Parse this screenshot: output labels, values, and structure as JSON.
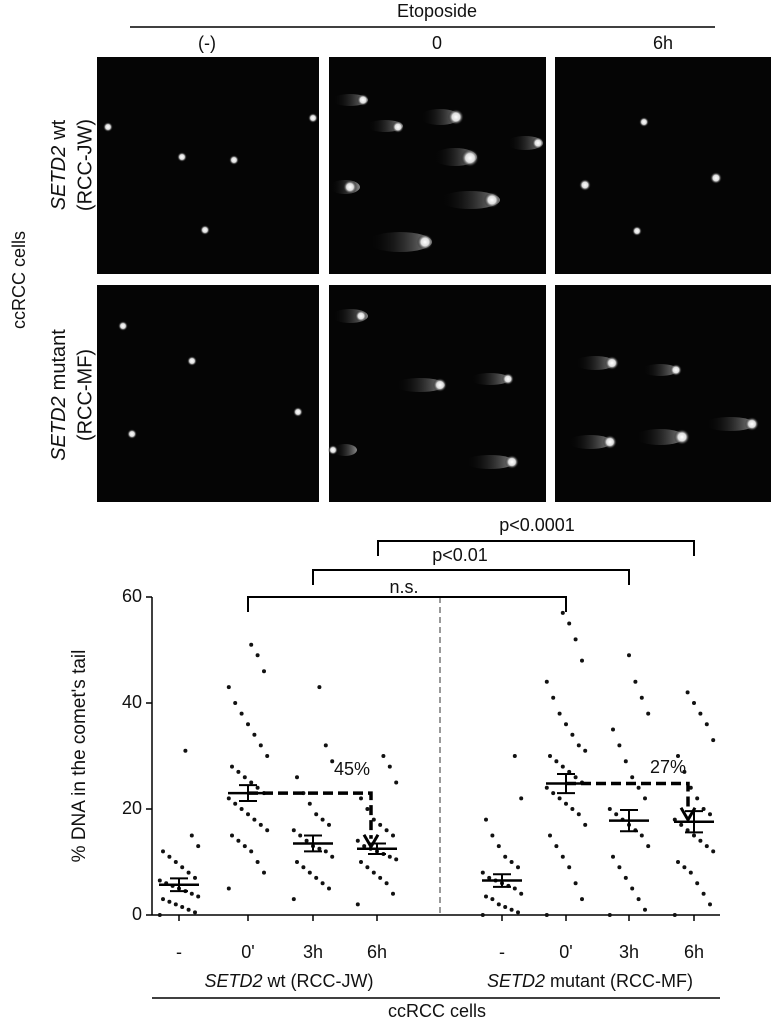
{
  "panels": {
    "title": "Etoposide",
    "columns": [
      "(-)",
      "0",
      "6h"
    ],
    "rows": [
      {
        "gene": "SETD2",
        "suffix": "wt",
        "line": "(RCC-JW)"
      },
      {
        "gene": "SETD2",
        "suffix": "mutant",
        "line": "(RCC-MF)"
      }
    ],
    "row_group": "ccRCC cells"
  },
  "chart_data": {
    "type": "strip",
    "ylabel": "% DNA in the comet's tail",
    "xlabel": "ccRCC cells",
    "categories": [
      "-",
      "0'",
      "3h",
      "6h",
      "-",
      "0'",
      "3h",
      "6h"
    ],
    "group_labels": [
      {
        "gene": "SETD2",
        "label": "wt (RCC-JW)"
      },
      {
        "gene": "SETD2",
        "label": "mutant (RCC-MF)"
      }
    ],
    "ylim": [
      0,
      60
    ],
    "yticks": [
      0,
      20,
      40,
      60
    ],
    "points": [
      [
        0,
        0.5,
        1,
        1.5,
        2,
        2.5,
        3,
        3.5,
        4,
        4.5,
        5,
        5.5,
        6,
        6.5,
        7,
        8,
        9,
        10,
        11,
        12,
        13,
        15,
        31
      ],
      [
        5,
        8,
        10,
        12,
        13,
        14,
        15,
        16,
        17,
        18,
        19,
        20,
        21,
        22,
        23,
        24,
        25,
        26,
        27,
        28,
        30,
        32,
        34,
        36,
        38,
        40,
        43,
        46,
        49,
        51
      ],
      [
        3,
        5,
        6,
        7,
        8,
        9,
        10,
        11,
        12,
        12.5,
        13,
        14,
        15,
        16,
        17,
        18,
        19,
        21,
        23,
        26,
        29,
        32,
        43
      ],
      [
        2,
        4,
        6,
        7,
        8,
        9,
        10,
        10.5,
        11,
        11.5,
        12,
        12.5,
        13,
        14,
        15,
        16,
        17,
        18,
        20,
        22,
        25,
        28,
        30
      ],
      [
        0,
        0.5,
        1,
        1.5,
        2,
        3,
        3.5,
        4,
        5,
        5.5,
        6,
        6.5,
        7,
        8,
        9,
        10,
        11,
        13,
        15,
        18,
        22,
        30
      ],
      [
        0,
        3,
        6,
        9,
        11,
        13,
        15,
        17,
        19,
        20,
        21,
        22,
        23,
        24,
        25,
        26,
        27,
        28,
        29,
        30,
        31,
        32,
        34,
        36,
        38,
        41,
        44,
        48,
        52,
        55,
        57
      ],
      [
        0,
        1,
        3,
        5,
        7,
        9,
        11,
        13,
        15,
        16,
        17,
        18,
        19,
        20,
        22,
        24,
        26,
        29,
        32,
        35,
        38,
        41,
        44,
        49
      ],
      [
        0,
        2,
        4,
        6,
        8,
        9,
        10,
        12,
        13,
        14,
        15,
        16,
        17,
        18,
        19,
        20,
        22,
        24,
        27,
        30,
        33,
        36,
        38,
        40,
        42
      ]
    ],
    "means": [
      5.7,
      23,
      13.5,
      12.5,
      6.5,
      24.8,
      17.8,
      17.6
    ],
    "errors": [
      1.2,
      1.5,
      1.5,
      1,
      1.2,
      1.8,
      2,
      2
    ],
    "comparisons": [
      "n.s.",
      "p<0.01",
      "p<0.0001"
    ],
    "reductions": [
      "45%",
      "27%"
    ]
  }
}
